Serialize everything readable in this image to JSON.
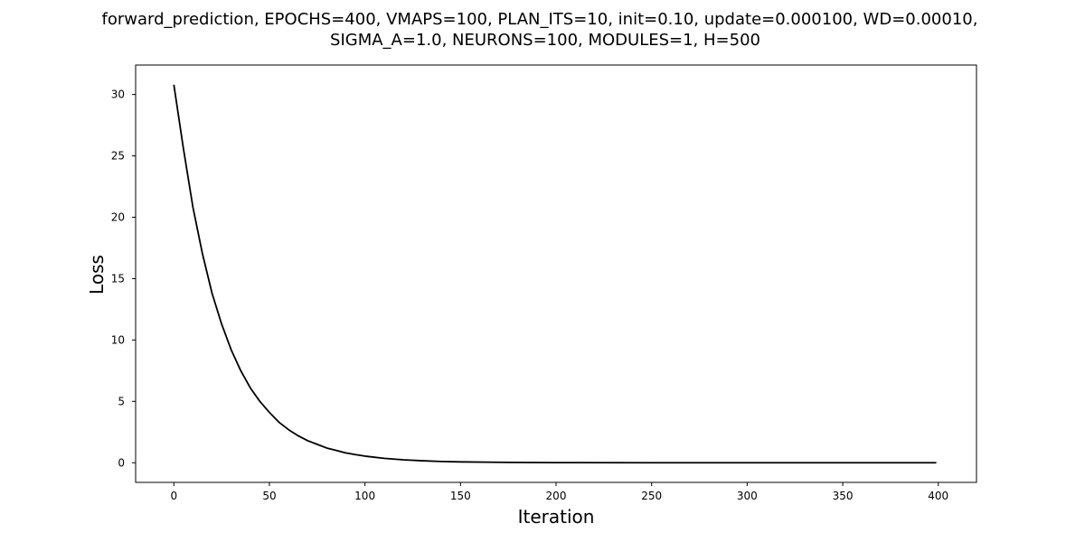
{
  "chart_data": {
    "type": "line",
    "title_lines": [
      "forward_prediction, EPOCHS=400, VMAPS=100, PLAN_ITS=10, init=0.10, update=0.000100, WD=0.00010,",
      "SIGMA_A=1.0, NEURONS=100, MODULES=1, H=500"
    ],
    "xlabel": "Iteration",
    "ylabel": "Loss",
    "xlim": [
      -20,
      420
    ],
    "ylim": [
      -1.6,
      32.4
    ],
    "xticks": [
      0,
      50,
      100,
      150,
      200,
      250,
      300,
      350,
      400
    ],
    "yticks": [
      0,
      5,
      10,
      15,
      20,
      25,
      30
    ],
    "grid": false,
    "line_color": "#000000",
    "series": [
      {
        "x": [
          0,
          5,
          10,
          15,
          20,
          25,
          30,
          35,
          40,
          45,
          50,
          55,
          60,
          65,
          70,
          75,
          80,
          85,
          90,
          95,
          100,
          110,
          120,
          130,
          140,
          150,
          175,
          200,
          250,
          300,
          350,
          399
        ],
        "values": [
          30.8,
          25.6,
          20.8,
          17.0,
          13.8,
          11.3,
          9.2,
          7.5,
          6.1,
          5.0,
          4.1,
          3.3,
          2.7,
          2.2,
          1.8,
          1.5,
          1.2,
          1.0,
          0.8,
          0.66,
          0.54,
          0.36,
          0.24,
          0.16,
          0.1,
          0.07,
          0.03,
          0.01,
          0.0,
          0.0,
          0.0,
          0.0
        ]
      }
    ]
  }
}
